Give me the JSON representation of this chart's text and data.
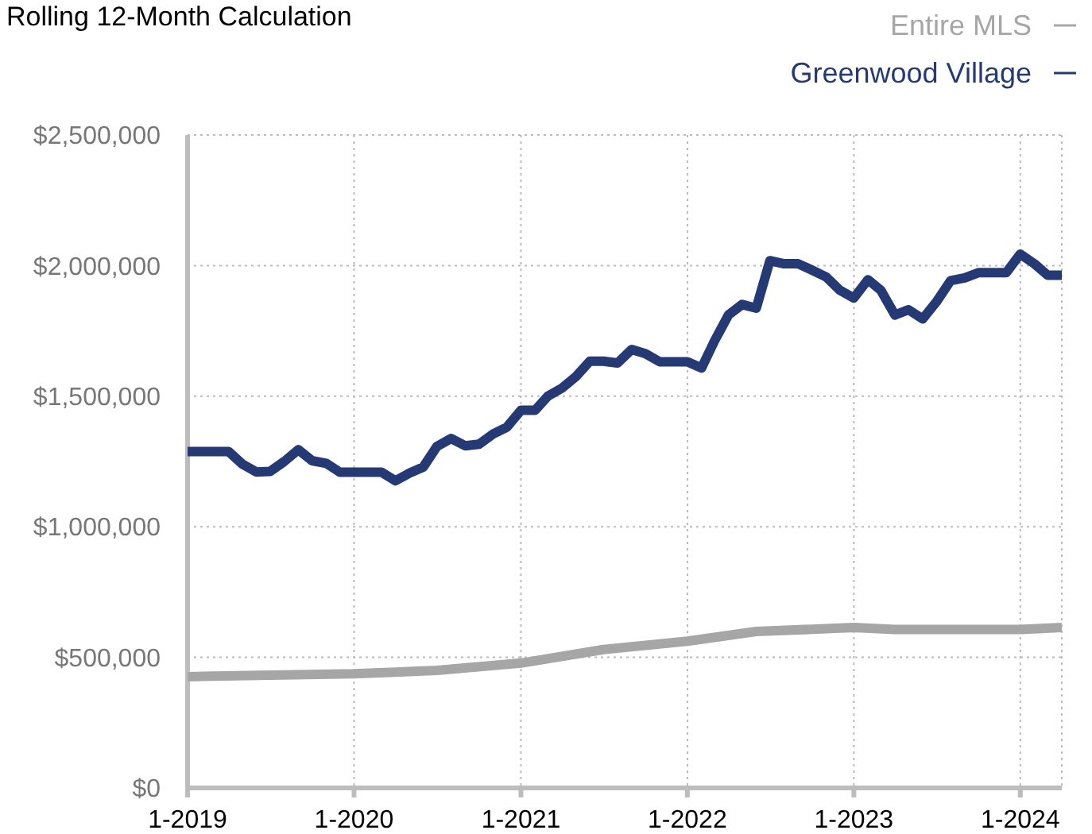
{
  "chart_data": {
    "type": "line",
    "title": "Rolling 12-Month Calculation",
    "xlim": [
      "2019-01",
      "2024-04"
    ],
    "xticks": [
      {
        "value": "2019-01",
        "label": "1-2019"
      },
      {
        "value": "2020-01",
        "label": "1-2020"
      },
      {
        "value": "2021-01",
        "label": "1-2021"
      },
      {
        "value": "2022-01",
        "label": "1-2022"
      },
      {
        "value": "2023-01",
        "label": "1-2023"
      },
      {
        "value": "2024-01",
        "label": "1-2024"
      }
    ],
    "ylim": [
      0,
      2500000
    ],
    "yticks": [
      {
        "value": 0,
        "label": "$0"
      },
      {
        "value": 500000,
        "label": "$500,000"
      },
      {
        "value": 1000000,
        "label": "$1,000,000"
      },
      {
        "value": 1500000,
        "label": "$1,500,000"
      },
      {
        "value": 2000000,
        "label": "$2,000,000"
      },
      {
        "value": 2500000,
        "label": "$2,500,000"
      }
    ],
    "grid": true,
    "legend": "top right",
    "marker": "none",
    "line_style": "solid",
    "series": [
      {
        "name": "Entire MLS",
        "color": "#a6a6a6",
        "x": [
          "2019-01",
          "2019-07",
          "2020-01",
          "2020-07",
          "2021-01",
          "2021-07",
          "2022-01",
          "2022-06",
          "2023-01",
          "2023-04",
          "2024-01",
          "2024-04"
        ],
        "values": [
          426000,
          432000,
          437000,
          450000,
          478000,
          530000,
          562000,
          599000,
          614000,
          607000,
          607000,
          614000
        ]
      },
      {
        "name": "Greenwood Village",
        "color": "#253a74",
        "x": [
          "2019-01",
          "2019-02",
          "2019-03",
          "2019-04",
          "2019-05",
          "2019-06",
          "2019-07",
          "2019-08",
          "2019-09",
          "2019-10",
          "2019-11",
          "2019-12",
          "2020-01",
          "2020-02",
          "2020-03",
          "2020-04",
          "2020-05",
          "2020-06",
          "2020-07",
          "2020-08",
          "2020-09",
          "2020-10",
          "2020-11",
          "2020-12",
          "2021-01",
          "2021-02",
          "2021-03",
          "2021-04",
          "2021-05",
          "2021-06",
          "2021-07",
          "2021-08",
          "2021-09",
          "2021-10",
          "2021-11",
          "2021-12",
          "2022-01",
          "2022-02",
          "2022-03",
          "2022-04",
          "2022-05",
          "2022-06",
          "2022-07",
          "2022-08",
          "2022-09",
          "2022-10",
          "2022-11",
          "2022-12",
          "2023-01",
          "2023-02",
          "2023-03",
          "2023-04",
          "2023-05",
          "2023-06",
          "2023-07",
          "2023-08",
          "2023-09",
          "2023-10",
          "2023-11",
          "2023-12",
          "2024-01",
          "2024-02",
          "2024-03",
          "2024-04"
        ],
        "values": [
          1288000,
          1288000,
          1288000,
          1288000,
          1240000,
          1210000,
          1212000,
          1250000,
          1295000,
          1253000,
          1243000,
          1209000,
          1209000,
          1209000,
          1209000,
          1176000,
          1205000,
          1229000,
          1308000,
          1338000,
          1310000,
          1316000,
          1355000,
          1381000,
          1446000,
          1446000,
          1500000,
          1531000,
          1574000,
          1634000,
          1634000,
          1627000,
          1679000,
          1663000,
          1632000,
          1632000,
          1632000,
          1608000,
          1710000,
          1811000,
          1851000,
          1837000,
          2019000,
          2007000,
          2007000,
          1983000,
          1957000,
          1906000,
          1876000,
          1946000,
          1906000,
          1811000,
          1831000,
          1796000,
          1861000,
          1942000,
          1953000,
          1973000,
          1973000,
          1973000,
          2044000,
          2007000,
          1963000,
          1963000
        ]
      }
    ]
  }
}
